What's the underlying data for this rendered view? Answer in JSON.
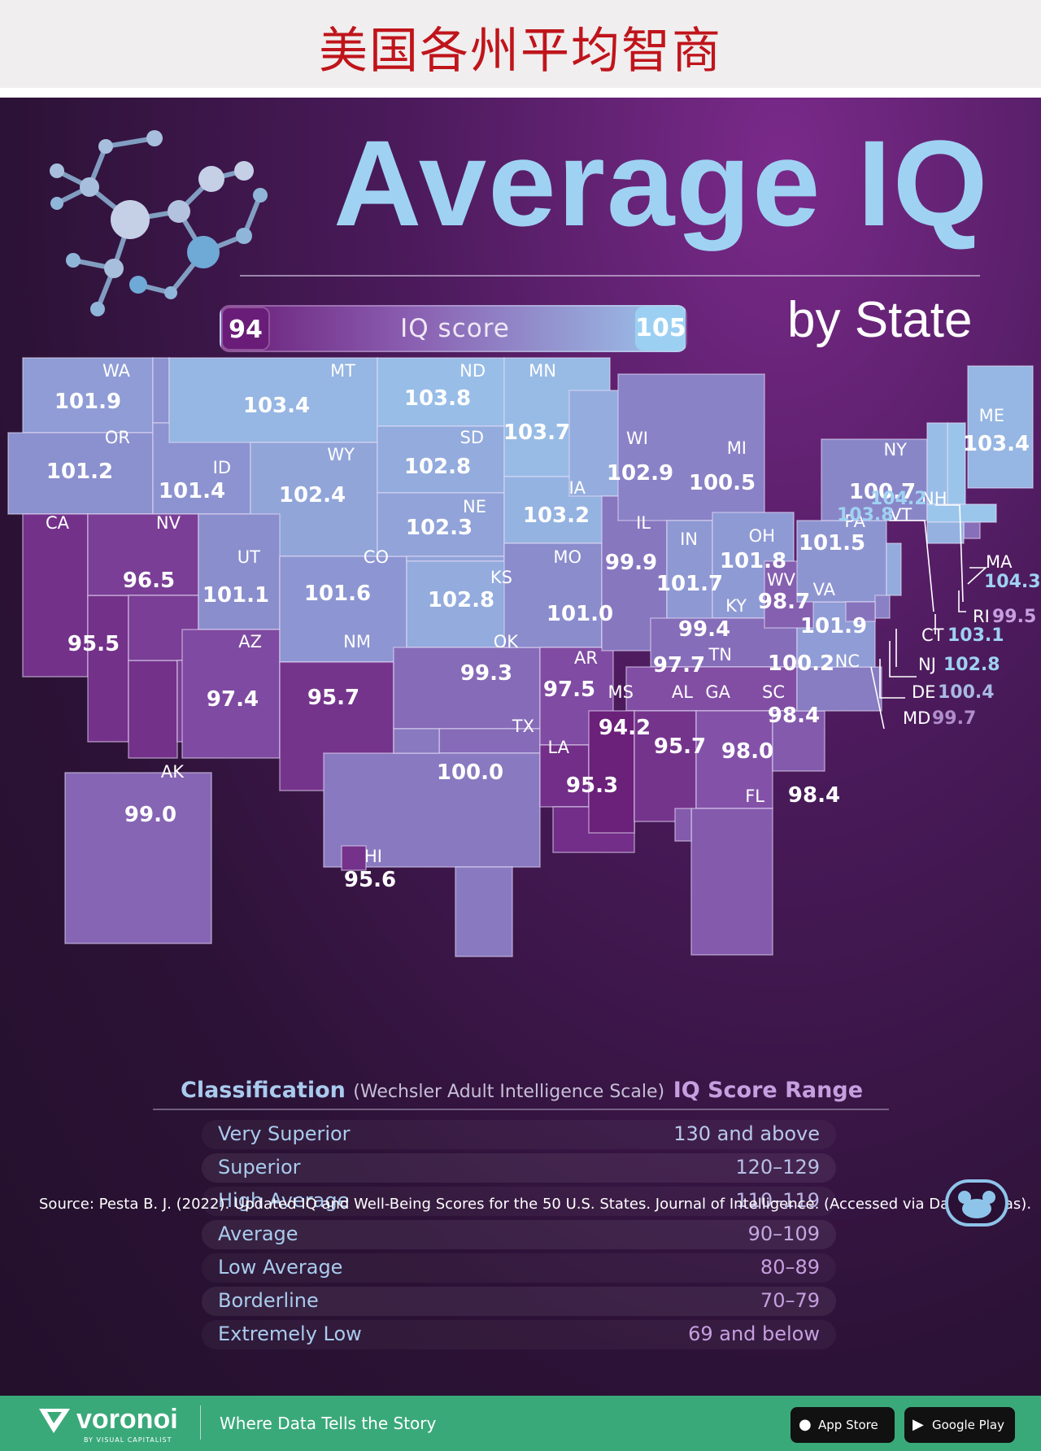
{
  "banner": {
    "title": "美国各州平均智商"
  },
  "header": {
    "title": "Average IQ",
    "subtitle": "by State"
  },
  "legend": {
    "label": "IQ score",
    "min": "94",
    "max": "105",
    "min_color": "#6a1d78",
    "max_color": "#9cd0f2"
  },
  "states": [
    {
      "abbr": "WA",
      "value": 101.9
    },
    {
      "abbr": "OR",
      "value": 101.2
    },
    {
      "abbr": "CA",
      "value": 95.5
    },
    {
      "abbr": "ID",
      "value": 101.4
    },
    {
      "abbr": "NV",
      "value": 96.5
    },
    {
      "abbr": "MT",
      "value": 103.4
    },
    {
      "abbr": "WY",
      "value": 102.4
    },
    {
      "abbr": "UT",
      "value": 101.1
    },
    {
      "abbr": "AZ",
      "value": 97.4
    },
    {
      "abbr": "CO",
      "value": 101.6
    },
    {
      "abbr": "NM",
      "value": 95.7
    },
    {
      "abbr": "ND",
      "value": 103.8
    },
    {
      "abbr": "SD",
      "value": 102.8
    },
    {
      "abbr": "NE",
      "value": 102.3
    },
    {
      "abbr": "KS",
      "value": 102.8
    },
    {
      "abbr": "OK",
      "value": 99.3
    },
    {
      "abbr": "TX",
      "value": 100.0
    },
    {
      "abbr": "MN",
      "value": 103.7
    },
    {
      "abbr": "IA",
      "value": 103.2
    },
    {
      "abbr": "MO",
      "value": 101.0
    },
    {
      "abbr": "AR",
      "value": 97.5
    },
    {
      "abbr": "LA",
      "value": 95.3
    },
    {
      "abbr": "WI",
      "value": 102.9
    },
    {
      "abbr": "IL",
      "value": 99.9
    },
    {
      "abbr": "MI",
      "value": 100.5
    },
    {
      "abbr": "IN",
      "value": 101.7
    },
    {
      "abbr": "OH",
      "value": 101.8
    },
    {
      "abbr": "KY",
      "value": 99.4
    },
    {
      "abbr": "TN",
      "value": 97.7
    },
    {
      "abbr": "MS",
      "value": 94.2
    },
    {
      "abbr": "AL",
      "value": 95.7
    },
    {
      "abbr": "GA",
      "value": 98.0
    },
    {
      "abbr": "FL",
      "value": 98.4
    },
    {
      "abbr": "SC",
      "value": 98.4
    },
    {
      "abbr": "NC",
      "value": 100.2
    },
    {
      "abbr": "VA",
      "value": 101.9
    },
    {
      "abbr": "WV",
      "value": 98.7
    },
    {
      "abbr": "PA",
      "value": 101.5
    },
    {
      "abbr": "NY",
      "value": 100.7
    },
    {
      "abbr": "ME",
      "value": 103.4
    },
    {
      "abbr": "AK",
      "value": 99.0
    },
    {
      "abbr": "HI",
      "value": 95.6
    },
    {
      "abbr": "NH",
      "value": 104.2
    },
    {
      "abbr": "VT",
      "value": 103.8
    },
    {
      "abbr": "MA",
      "value": 104.3
    },
    {
      "abbr": "RI",
      "value": 99.5
    },
    {
      "abbr": "CT",
      "value": 103.1
    },
    {
      "abbr": "NJ",
      "value": 102.8
    },
    {
      "abbr": "DE",
      "value": 100.4
    },
    {
      "abbr": "MD",
      "value": 99.7
    }
  ],
  "classification": {
    "title": "Classification",
    "subtitle": "(Wechsler Adult Intelligence Scale)",
    "range_header": "IQ Score Range",
    "rows": [
      {
        "name": "Very Superior",
        "range": "130 and above"
      },
      {
        "name": "Superior",
        "range": "120–129"
      },
      {
        "name": "High Average",
        "range": "110–119"
      },
      {
        "name": "Average",
        "range": "90–109"
      },
      {
        "name": "Low Average",
        "range": "80–89"
      },
      {
        "name": "Borderline",
        "range": "70–79"
      },
      {
        "name": "Extremely Low",
        "range": "69 and below"
      }
    ]
  },
  "source": "Source: Pesta B. J. (2022). Updated IQ and Well-Being Scores for the 50 U.S. States. Journal of Intelligence. (Accessed via Data Pandas).",
  "footer": {
    "logo": "voronoi",
    "byline": "BY VISUAL CAPITALIST",
    "tagline": "Where Data Tells the Story",
    "app_store": "App Store",
    "google_play": "Google Play"
  }
}
